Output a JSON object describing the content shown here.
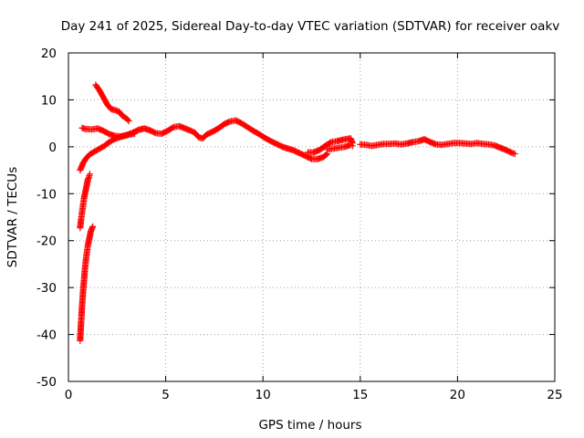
{
  "chart_data": {
    "type": "scatter",
    "title": "Day 241 of 2025, Sidereal Day-to-day VTEC variation (SDTVAR) for receiver oakv",
    "xlabel": "GPS time / hours",
    "ylabel": "SDTVAR / TECUs",
    "xlim": [
      0,
      25
    ],
    "ylim": [
      -50,
      20
    ],
    "xticks": [
      0,
      5,
      10,
      15,
      20,
      25
    ],
    "yticks": [
      -50,
      -40,
      -30,
      -20,
      -10,
      0,
      10,
      20
    ],
    "grid": true,
    "marker": "plus",
    "series_color": "#ff0000",
    "series": [
      {
        "name": "SDTVAR",
        "segments": [
          [
            [
              0.6,
              -41.3
            ],
            [
              0.65,
              -37.5
            ],
            [
              0.7,
              -34.0
            ],
            [
              0.75,
              -31.0
            ],
            [
              0.8,
              -28.5
            ],
            [
              0.85,
              -26.0
            ],
            [
              0.9,
              -24.0
            ],
            [
              0.95,
              -22.5
            ],
            [
              1.0,
              -21.0
            ],
            [
              1.05,
              -20.0
            ],
            [
              1.1,
              -19.0
            ],
            [
              1.15,
              -18.0
            ],
            [
              1.2,
              -17.5
            ],
            [
              1.25,
              -17.0
            ]
          ],
          [
            [
              0.6,
              -17.3
            ],
            [
              0.65,
              -15.5
            ],
            [
              0.7,
              -14.0
            ],
            [
              0.75,
              -12.5
            ],
            [
              0.8,
              -11.0
            ],
            [
              0.85,
              -10.0
            ],
            [
              0.9,
              -9.0
            ],
            [
              0.95,
              -8.0
            ],
            [
              1.0,
              -7.0
            ],
            [
              1.05,
              -6.5
            ],
            [
              1.1,
              -5.8
            ]
          ],
          [
            [
              0.6,
              -5.0
            ],
            [
              0.75,
              -3.5
            ],
            [
              0.9,
              -2.5
            ],
            [
              1.1,
              -1.6
            ],
            [
              1.35,
              -1.0
            ],
            [
              1.6,
              -0.4
            ],
            [
              1.85,
              0.2
            ],
            [
              2.1,
              1.0
            ],
            [
              2.35,
              1.6
            ],
            [
              2.6,
              2.0
            ],
            [
              2.85,
              2.3
            ],
            [
              3.1,
              2.6
            ],
            [
              3.4,
              2.8
            ]
          ],
          [
            [
              0.7,
              4.0
            ],
            [
              0.9,
              3.8
            ],
            [
              1.2,
              3.7
            ],
            [
              1.5,
              3.9
            ],
            [
              1.8,
              3.4
            ],
            [
              2.1,
              2.7
            ],
            [
              2.4,
              2.3
            ],
            [
              2.7,
              2.2
            ],
            [
              3.0,
              2.5
            ],
            [
              3.3,
              3.0
            ],
            [
              3.6,
              3.6
            ],
            [
              3.9,
              3.9
            ],
            [
              4.2,
              3.5
            ],
            [
              4.5,
              2.9
            ],
            [
              4.8,
              2.8
            ],
            [
              5.1,
              3.4
            ],
            [
              5.4,
              4.2
            ],
            [
              5.7,
              4.4
            ],
            [
              6.0,
              3.9
            ],
            [
              6.3,
              3.4
            ],
            [
              6.5,
              3.0
            ],
            [
              6.7,
              2.0
            ],
            [
              6.9,
              1.8
            ],
            [
              7.1,
              2.6
            ],
            [
              7.4,
              3.2
            ],
            [
              7.7,
              3.9
            ],
            [
              8.0,
              4.8
            ],
            [
              8.3,
              5.4
            ],
            [
              8.6,
              5.6
            ],
            [
              8.9,
              5.0
            ],
            [
              9.2,
              4.2
            ],
            [
              9.5,
              3.4
            ],
            [
              9.8,
              2.7
            ],
            [
              10.1,
              1.9
            ],
            [
              10.4,
              1.2
            ],
            [
              10.7,
              0.6
            ],
            [
              11.0,
              0.0
            ],
            [
              11.3,
              -0.4
            ],
            [
              11.6,
              -0.8
            ],
            [
              11.9,
              -1.4
            ],
            [
              12.2,
              -2.0
            ],
            [
              12.5,
              -2.6
            ],
            [
              12.8,
              -2.6
            ],
            [
              13.1,
              -2.2
            ],
            [
              13.3,
              -1.5
            ]
          ],
          [
            [
              12.3,
              -1.2
            ],
            [
              12.6,
              -1.2
            ],
            [
              12.9,
              -0.7
            ],
            [
              13.2,
              0.2
            ],
            [
              13.5,
              1.0
            ],
            [
              13.8,
              1.2
            ],
            [
              14.1,
              1.5
            ],
            [
              14.5,
              1.8
            ],
            [
              14.6,
              0.8
            ]
          ],
          [
            [
              13.3,
              -0.6
            ],
            [
              13.6,
              -0.4
            ],
            [
              13.9,
              -0.2
            ],
            [
              14.2,
              0.0
            ],
            [
              14.5,
              0.4
            ],
            [
              14.6,
              0.2
            ]
          ],
          [
            [
              15.0,
              0.5
            ],
            [
              15.3,
              0.4
            ],
            [
              15.6,
              0.2
            ],
            [
              15.9,
              0.4
            ],
            [
              16.2,
              0.6
            ],
            [
              16.5,
              0.6
            ],
            [
              16.8,
              0.7
            ],
            [
              17.1,
              0.5
            ],
            [
              17.4,
              0.7
            ],
            [
              17.7,
              1.0
            ],
            [
              18.0,
              1.2
            ],
            [
              18.3,
              1.6
            ],
            [
              18.6,
              1.0
            ],
            [
              18.9,
              0.5
            ],
            [
              19.2,
              0.4
            ],
            [
              19.5,
              0.6
            ],
            [
              19.8,
              0.8
            ],
            [
              20.1,
              0.8
            ],
            [
              20.4,
              0.7
            ],
            [
              20.7,
              0.6
            ],
            [
              21.0,
              0.8
            ],
            [
              21.3,
              0.6
            ],
            [
              21.6,
              0.5
            ],
            [
              21.9,
              0.3
            ],
            [
              22.2,
              -0.2
            ],
            [
              22.5,
              -0.7
            ],
            [
              22.8,
              -1.3
            ],
            [
              22.95,
              -1.5
            ]
          ],
          [
            [
              1.4,
              13.2
            ],
            [
              1.6,
              12.0
            ],
            [
              1.8,
              10.5
            ],
            [
              2.0,
              9.0
            ],
            [
              2.2,
              8.0
            ],
            [
              2.4,
              7.8
            ],
            [
              2.6,
              7.5
            ],
            [
              2.8,
              6.5
            ],
            [
              3.0,
              6.0
            ],
            [
              3.1,
              5.5
            ]
          ]
        ]
      }
    ]
  }
}
